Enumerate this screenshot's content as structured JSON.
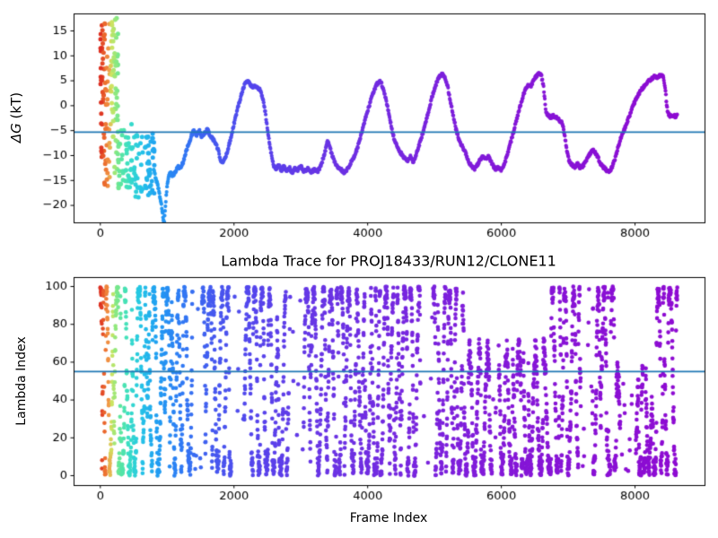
{
  "figure": {
    "background": "#ffffff",
    "axis_color": "#000000",
    "tick_label_color": "#000000"
  },
  "colormap": {
    "name": "rainbow-reversed-over-time",
    "stops": [
      [
        0,
        "#dc2a20"
      ],
      [
        70,
        "#ec6e2e"
      ],
      [
        130,
        "#f19a48"
      ],
      [
        170,
        "#cfe35f"
      ],
      [
        230,
        "#8fe87e"
      ],
      [
        300,
        "#5ce69e"
      ],
      [
        420,
        "#3bdfc3"
      ],
      [
        600,
        "#25c6e6"
      ],
      [
        850,
        "#209ef2"
      ],
      [
        1200,
        "#2f7bf4"
      ],
      [
        1700,
        "#4658ef"
      ],
      [
        2300,
        "#5545ec"
      ],
      [
        3200,
        "#6736e5"
      ],
      [
        4500,
        "#7627df"
      ],
      [
        6000,
        "#8418d8"
      ],
      [
        8633,
        "#8e0bd2"
      ]
    ]
  },
  "frame_max": 8633,
  "chart_data": [
    {
      "type": "scatter",
      "ylabel_math": "ΔG",
      "ylabel_units": " (kT)",
      "xlim": [
        -400,
        9040
      ],
      "ylim": [
        -23.4,
        18.5
      ],
      "xticks": [
        0,
        2000,
        4000,
        6000,
        8000
      ],
      "yticks": [
        15,
        10,
        5,
        0,
        -5,
        -10,
        -15,
        -20
      ],
      "grid": false,
      "hline": {
        "y": -5.3,
        "color": "#1f77b4",
        "width": 1.8
      },
      "point_radius": 2.5,
      "trace_radius": 2.1,
      "trace_step": 6,
      "trace_jitter": 0.6,
      "seed": 999,
      "scatter_clusters": [
        {
          "f0": 3,
          "f1": 62,
          "n": 40,
          "lo": -10.5,
          "hi": 17.6
        },
        {
          "f0": 62,
          "f1": 155,
          "n": 38,
          "lo": -16.2,
          "hi": 17.2
        },
        {
          "f0": 155,
          "f1": 265,
          "n": 58,
          "lo": -5.5,
          "hi": 17.6
        },
        {
          "f0": 185,
          "f1": 300,
          "n": 14,
          "lo": -16.5,
          "hi": -5.5
        },
        {
          "f0": 265,
          "f1": 470,
          "n": 42,
          "lo": -17.0,
          "hi": -3.6
        },
        {
          "f0": 470,
          "f1": 810,
          "n": 70,
          "lo": -18.5,
          "hi": -5.2
        }
      ],
      "trace_keypoints": [
        [
          800,
          -13
        ],
        [
          830,
          -14.5
        ],
        [
          860,
          -16
        ],
        [
          890,
          -18
        ],
        [
          915,
          -20
        ],
        [
          940,
          -22.5
        ],
        [
          955,
          -23.3
        ],
        [
          970,
          -21
        ],
        [
          990,
          -17.5
        ],
        [
          1010,
          -15
        ],
        [
          1040,
          -13.2
        ],
        [
          1080,
          -14
        ],
        [
          1120,
          -13.4
        ],
        [
          1160,
          -12.2
        ],
        [
          1200,
          -12.6
        ],
        [
          1240,
          -11.2
        ],
        [
          1280,
          -9.4
        ],
        [
          1320,
          -7.6
        ],
        [
          1360,
          -6.2
        ],
        [
          1400,
          -4.9
        ],
        [
          1440,
          -6.1
        ],
        [
          1480,
          -5.0
        ],
        [
          1520,
          -6.3
        ],
        [
          1560,
          -5.6
        ],
        [
          1600,
          -4.7
        ],
        [
          1640,
          -5.9
        ],
        [
          1680,
          -6.6
        ],
        [
          1720,
          -7.4
        ],
        [
          1760,
          -8.8
        ],
        [
          1800,
          -10.9
        ],
        [
          1840,
          -11.4
        ],
        [
          1880,
          -10.1
        ],
        [
          1920,
          -8.2
        ],
        [
          1960,
          -6.0
        ],
        [
          2000,
          -3.6
        ],
        [
          2040,
          -1.4
        ],
        [
          2080,
          0.8
        ],
        [
          2120,
          2.8
        ],
        [
          2160,
          4.3
        ],
        [
          2200,
          5.0
        ],
        [
          2240,
          4.4
        ],
        [
          2280,
          3.6
        ],
        [
          2310,
          4.0
        ],
        [
          2350,
          3.6
        ],
        [
          2390,
          3.2
        ],
        [
          2430,
          1.5
        ],
        [
          2470,
          -1.5
        ],
        [
          2510,
          -5.6
        ],
        [
          2550,
          -9.0
        ],
        [
          2590,
          -12.0
        ],
        [
          2630,
          -12.6
        ],
        [
          2670,
          -12.0
        ],
        [
          2710,
          -13.0
        ],
        [
          2750,
          -12.2
        ],
        [
          2790,
          -13.2
        ],
        [
          2830,
          -12.4
        ],
        [
          2870,
          -13.4
        ],
        [
          2910,
          -12.6
        ],
        [
          2950,
          -13.0
        ],
        [
          3000,
          -12.2
        ],
        [
          3050,
          -13.2
        ],
        [
          3100,
          -12.6
        ],
        [
          3150,
          -13.4
        ],
        [
          3200,
          -12.8
        ],
        [
          3250,
          -13.2
        ],
        [
          3300,
          -12.0
        ],
        [
          3350,
          -9.8
        ],
        [
          3400,
          -7.0
        ],
        [
          3440,
          -8.6
        ],
        [
          3480,
          -10.4
        ],
        [
          3520,
          -11.8
        ],
        [
          3560,
          -12.6
        ],
        [
          3600,
          -12.8
        ],
        [
          3650,
          -13.4
        ],
        [
          3700,
          -12.6
        ],
        [
          3750,
          -11.4
        ],
        [
          3800,
          -10.2
        ],
        [
          3850,
          -8.4
        ],
        [
          3900,
          -6.0
        ],
        [
          3950,
          -3.4
        ],
        [
          4000,
          -1.0
        ],
        [
          4050,
          1.2
        ],
        [
          4100,
          3.2
        ],
        [
          4140,
          4.4
        ],
        [
          4180,
          4.9
        ],
        [
          4210,
          4.3
        ],
        [
          4240,
          3.0
        ],
        [
          4280,
          0.8
        ],
        [
          4320,
          -1.8
        ],
        [
          4360,
          -4.6
        ],
        [
          4400,
          -6.8
        ],
        [
          4440,
          -8.2
        ],
        [
          4480,
          -9.2
        ],
        [
          4520,
          -10.0
        ],
        [
          4560,
          -10.6
        ],
        [
          4600,
          -11.2
        ],
        [
          4640,
          -10.2
        ],
        [
          4680,
          -11.4
        ],
        [
          4720,
          -10.0
        ],
        [
          4760,
          -8.4
        ],
        [
          4800,
          -6.6
        ],
        [
          4840,
          -4.8
        ],
        [
          4880,
          -2.8
        ],
        [
          4920,
          -0.6
        ],
        [
          4960,
          1.6
        ],
        [
          5000,
          3.4
        ],
        [
          5040,
          5.0
        ],
        [
          5080,
          5.9
        ],
        [
          5120,
          6.3
        ],
        [
          5160,
          5.6
        ],
        [
          5200,
          3.6
        ],
        [
          5240,
          0.8
        ],
        [
          5280,
          -2.0
        ],
        [
          5320,
          -4.6
        ],
        [
          5360,
          -6.6
        ],
        [
          5400,
          -7.8
        ],
        [
          5440,
          -8.8
        ],
        [
          5480,
          -10.0
        ],
        [
          5520,
          -11.4
        ],
        [
          5560,
          -12.3
        ],
        [
          5600,
          -12.7
        ],
        [
          5640,
          -11.9
        ],
        [
          5680,
          -11.0
        ],
        [
          5720,
          -10.3
        ],
        [
          5760,
          -10.7
        ],
        [
          5800,
          -10.1
        ],
        [
          5840,
          -11.0
        ],
        [
          5880,
          -12.1
        ],
        [
          5920,
          -12.9
        ],
        [
          5960,
          -12.3
        ],
        [
          6000,
          -12.9
        ],
        [
          6040,
          -11.9
        ],
        [
          6080,
          -10.3
        ],
        [
          6120,
          -8.4
        ],
        [
          6160,
          -6.3
        ],
        [
          6200,
          -4.3
        ],
        [
          6240,
          -2.2
        ],
        [
          6280,
          -0.2
        ],
        [
          6320,
          1.8
        ],
        [
          6360,
          3.4
        ],
        [
          6400,
          4.2
        ],
        [
          6440,
          3.9
        ],
        [
          6480,
          5.0
        ],
        [
          6520,
          5.8
        ],
        [
          6560,
          6.4
        ],
        [
          6600,
          6.0
        ],
        [
          6630,
          4.0
        ],
        [
          6655,
          0.5
        ],
        [
          6670,
          -1.6
        ],
        [
          6700,
          -2.0
        ],
        [
          6740,
          -2.3
        ],
        [
          6780,
          -2.0
        ],
        [
          6820,
          -2.4
        ],
        [
          6860,
          -2.8
        ],
        [
          6900,
          -3.3
        ],
        [
          6930,
          -4.5
        ],
        [
          6960,
          -7.0
        ],
        [
          6990,
          -9.8
        ],
        [
          7020,
          -11.3
        ],
        [
          7060,
          -11.9
        ],
        [
          7100,
          -12.3
        ],
        [
          7140,
          -11.7
        ],
        [
          7180,
          -12.5
        ],
        [
          7220,
          -12.1
        ],
        [
          7260,
          -11.2
        ],
        [
          7300,
          -10.2
        ],
        [
          7340,
          -9.3
        ],
        [
          7380,
          -8.9
        ],
        [
          7420,
          -9.7
        ],
        [
          7460,
          -10.9
        ],
        [
          7500,
          -12.0
        ],
        [
          7540,
          -12.5
        ],
        [
          7580,
          -13.0
        ],
        [
          7620,
          -13.3
        ],
        [
          7660,
          -12.2
        ],
        [
          7700,
          -10.6
        ],
        [
          7740,
          -8.8
        ],
        [
          7780,
          -6.8
        ],
        [
          7820,
          -5.3
        ],
        [
          7860,
          -4.1
        ],
        [
          7900,
          -2.6
        ],
        [
          7940,
          -1.2
        ],
        [
          7980,
          0.3
        ],
        [
          8020,
          1.4
        ],
        [
          8060,
          2.4
        ],
        [
          8100,
          3.3
        ],
        [
          8140,
          4.1
        ],
        [
          8180,
          4.7
        ],
        [
          8220,
          5.1
        ],
        [
          8260,
          5.5
        ],
        [
          8300,
          5.9
        ],
        [
          8340,
          5.6
        ],
        [
          8380,
          6.1
        ],
        [
          8420,
          5.8
        ],
        [
          8450,
          3.8
        ],
        [
          8470,
          0.8
        ],
        [
          8490,
          -1.4
        ],
        [
          8520,
          -2.1
        ],
        [
          8560,
          -1.9
        ],
        [
          8600,
          -2.1
        ],
        [
          8633,
          -2.0
        ]
      ]
    },
    {
      "type": "scatter",
      "title": "Lambda Trace for PROJ18433/RUN12/CLONE11",
      "xlabel": "Frame Index",
      "ylabel": "Lambda Index",
      "xlim": [
        -400,
        9040
      ],
      "ylim": [
        -5,
        105
      ],
      "xticks": [
        0,
        2000,
        4000,
        6000,
        8000
      ],
      "yticks": [
        0,
        20,
        40,
        60,
        80,
        100
      ],
      "grid": false,
      "hline": {
        "y": 55,
        "color": "#1f77b4",
        "width": 1.8
      },
      "point_radius": 2.3,
      "walk": {
        "seed": 12345,
        "n": 4317,
        "frame_step": 2,
        "amp": 52,
        "noise": 16,
        "speed_min": 0.03,
        "speed_var": 0.17,
        "jump_prob": 0.04
      },
      "bias": [
        {
          "f0": 5500,
          "f1": 6700,
          "center": 32,
          "amp": 34
        },
        {
          "f0": 7700,
          "f1": 8300,
          "center": 25,
          "amp": 28
        }
      ],
      "gaps": [
        [
          1380,
          1520
        ],
        [
          1960,
          2150
        ],
        [
          2820,
          3040
        ],
        [
          4790,
          4980
        ],
        [
          5860,
          5960
        ],
        [
          7190,
          7360
        ],
        [
          7780,
          8010
        ]
      ],
      "gap_keep": 0.1
    }
  ]
}
